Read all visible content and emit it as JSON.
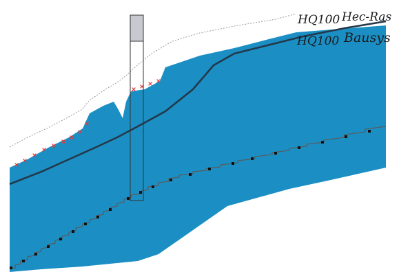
{
  "annotations": {
    "hq_label_upper": "HQ100",
    "model_upper": "Hec-Ras",
    "hq_label_lower": "HQ100",
    "model_lower": "Bausys"
  },
  "colors": {
    "water_fill": "#1b8fc4",
    "water_dark": "#1479ab",
    "hec_ras_line": "#9a9a9a",
    "bausys_line": "#23384a",
    "bed_marker": "#111111",
    "survey_points": "#e23b3b",
    "bridge_fill": "#c8c8d0",
    "bridge_outline": "#333333"
  },
  "icons": {
    "bed_markers": "black-square-marker",
    "survey_points": "red-cross-marker"
  }
}
